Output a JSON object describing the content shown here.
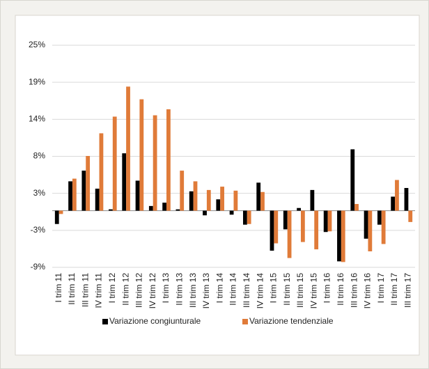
{
  "chart_data": {
    "type": "bar",
    "categories": [
      "I trim 11",
      "II trim 11",
      "III trim 11",
      "IV trim 11",
      "I trim 12",
      "II trim 12",
      "III trim 12",
      "IV trim 12",
      "I trim 13",
      "II trim 13",
      "III trim 13",
      "IV trim 13",
      "I trim 14",
      "II trim 14",
      "III trim 14",
      "IV trim 14",
      "I trim 15",
      "II trim 15",
      "III trim 15",
      "IV trim 15",
      "I trim 16",
      "II trim 16",
      "III trim 16",
      "IV trim 16",
      "I trim 17",
      "II trim 17",
      "III trim 17"
    ],
    "series": [
      {
        "name": "Variazione congiunturale",
        "color": "#000000",
        "values": [
          -2.0,
          4.4,
          6.0,
          3.3,
          0.2,
          8.6,
          4.5,
          0.7,
          1.2,
          0.2,
          2.9,
          -0.7,
          1.7,
          -0.6,
          -2.1,
          4.2,
          -6.0,
          -2.8,
          0.4,
          3.1,
          -3.2,
          -7.6,
          9.2,
          -4.2,
          -2.1,
          2.1,
          3.4
        ]
      },
      {
        "name": "Variazione tendenziale",
        "color": "#e07b39",
        "values": [
          -0.5,
          4.8,
          8.2,
          11.6,
          14.1,
          18.6,
          16.7,
          14.3,
          15.2,
          6.0,
          4.4,
          3.1,
          3.6,
          3.0,
          -2.0,
          2.8,
          -4.9,
          -7.1,
          -4.7,
          -5.8,
          -3.1,
          -7.7,
          1.0,
          -6.1,
          -5.0,
          4.6,
          -1.7
        ]
      }
    ],
    "ylim": [
      -8.5,
      24.8
    ],
    "yticks": [
      {
        "value": -8.5,
        "label": "-9%"
      },
      {
        "value": -2.95,
        "label": "-3%"
      },
      {
        "value": 2.6,
        "label": "3%"
      },
      {
        "value": 8.15,
        "label": "8%"
      },
      {
        "value": 13.7,
        "label": "14%"
      },
      {
        "value": 19.25,
        "label": "19%"
      },
      {
        "value": 24.8,
        "label": "25%"
      }
    ],
    "grid": true,
    "legend": "bottom"
  }
}
